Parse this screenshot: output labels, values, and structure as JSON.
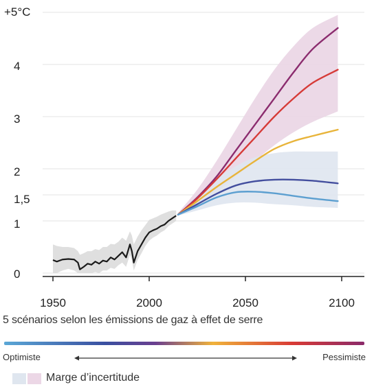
{
  "chart_data": {
    "type": "line",
    "ylabel": "+5°C",
    "x_ticks": [
      "1950",
      "2000",
      "2050",
      "2100"
    ],
    "y_ticks": [
      "0",
      "1",
      "1,5",
      "2",
      "3",
      "4"
    ],
    "xlim": [
      1950,
      2100
    ],
    "ylim": [
      0,
      5
    ],
    "grid": true,
    "historical": {
      "x": [
        1950,
        1952,
        1955,
        1958,
        1961,
        1963,
        1964,
        1966,
        1968,
        1970,
        1972,
        1974,
        1976,
        1978,
        1980,
        1982,
        1984,
        1986,
        1988,
        1990,
        1991,
        1992,
        1994,
        1996,
        1998,
        2000,
        2002,
        2004,
        2006,
        2008,
        2010,
        2012,
        2014
      ],
      "y": [
        0.25,
        0.22,
        0.26,
        0.27,
        0.26,
        0.2,
        0.07,
        0.12,
        0.18,
        0.16,
        0.22,
        0.18,
        0.24,
        0.22,
        0.3,
        0.26,
        0.33,
        0.4,
        0.3,
        0.55,
        0.42,
        0.2,
        0.42,
        0.55,
        0.68,
        0.78,
        0.82,
        0.85,
        0.9,
        0.93,
        1.0,
        1.05,
        1.1
      ],
      "band_low": [
        0,
        0,
        0.05,
        0.08,
        0.05,
        0,
        0,
        0,
        0,
        0,
        0.02,
        0,
        0.05,
        0.05,
        0.1,
        0.08,
        0.15,
        0.2,
        0.12,
        0.35,
        0.25,
        0.05,
        0.25,
        0.38,
        0.52,
        0.62,
        0.68,
        0.72,
        0.78,
        0.82,
        0.9,
        0.95,
        1.0
      ],
      "band_high": [
        0.55,
        0.52,
        0.5,
        0.5,
        0.48,
        0.42,
        0.35,
        0.38,
        0.42,
        0.42,
        0.46,
        0.44,
        0.5,
        0.5,
        0.56,
        0.55,
        0.6,
        0.68,
        0.62,
        0.8,
        0.72,
        0.55,
        0.7,
        0.82,
        0.92,
        1.02,
        1.05,
        1.08,
        1.12,
        1.15,
        1.18,
        1.2,
        1.2
      ]
    },
    "projection_x": [
      2015,
      2025,
      2035,
      2045,
      2055,
      2065,
      2075,
      2085,
      2098
    ],
    "series": [
      {
        "color": "#8b2c6e",
        "values": [
          1.12,
          1.45,
          1.85,
          2.35,
          2.85,
          3.35,
          3.85,
          4.3,
          4.7
        ]
      },
      {
        "color": "#d63b38",
        "values": [
          1.12,
          1.43,
          1.8,
          2.2,
          2.6,
          3.0,
          3.35,
          3.65,
          3.9
        ]
      },
      {
        "color": "#e8b43a",
        "values": [
          1.12,
          1.38,
          1.65,
          1.9,
          2.15,
          2.38,
          2.53,
          2.63,
          2.75
        ]
      },
      {
        "color": "#434e9e",
        "values": [
          1.12,
          1.32,
          1.52,
          1.68,
          1.76,
          1.79,
          1.79,
          1.77,
          1.72
        ]
      },
      {
        "color": "#5c9fd0",
        "values": [
          1.12,
          1.28,
          1.45,
          1.55,
          1.56,
          1.53,
          1.48,
          1.43,
          1.38
        ]
      }
    ],
    "uncertainty_bands": [
      {
        "color": "#ead5e4",
        "low": [
          1.1,
          1.3,
          1.55,
          1.85,
          2.15,
          2.45,
          2.7,
          2.9,
          3.1
        ],
        "high": [
          1.15,
          1.6,
          2.15,
          2.75,
          3.35,
          3.9,
          4.35,
          4.7,
          4.95
        ]
      },
      {
        "color": "#dfe6ef",
        "low": [
          1.1,
          1.2,
          1.3,
          1.35,
          1.35,
          1.32,
          1.3,
          1.27,
          1.25
        ],
        "high": [
          1.15,
          1.45,
          1.8,
          2.05,
          2.22,
          2.3,
          2.33,
          2.33,
          2.33
        ]
      }
    ]
  },
  "caption": "5 scénarios selon les émissions de gaz à effet de serre",
  "scale": {
    "left": "Optimiste",
    "right": "Pessimiste"
  },
  "legend": {
    "label": "Marge d’incertitude"
  }
}
